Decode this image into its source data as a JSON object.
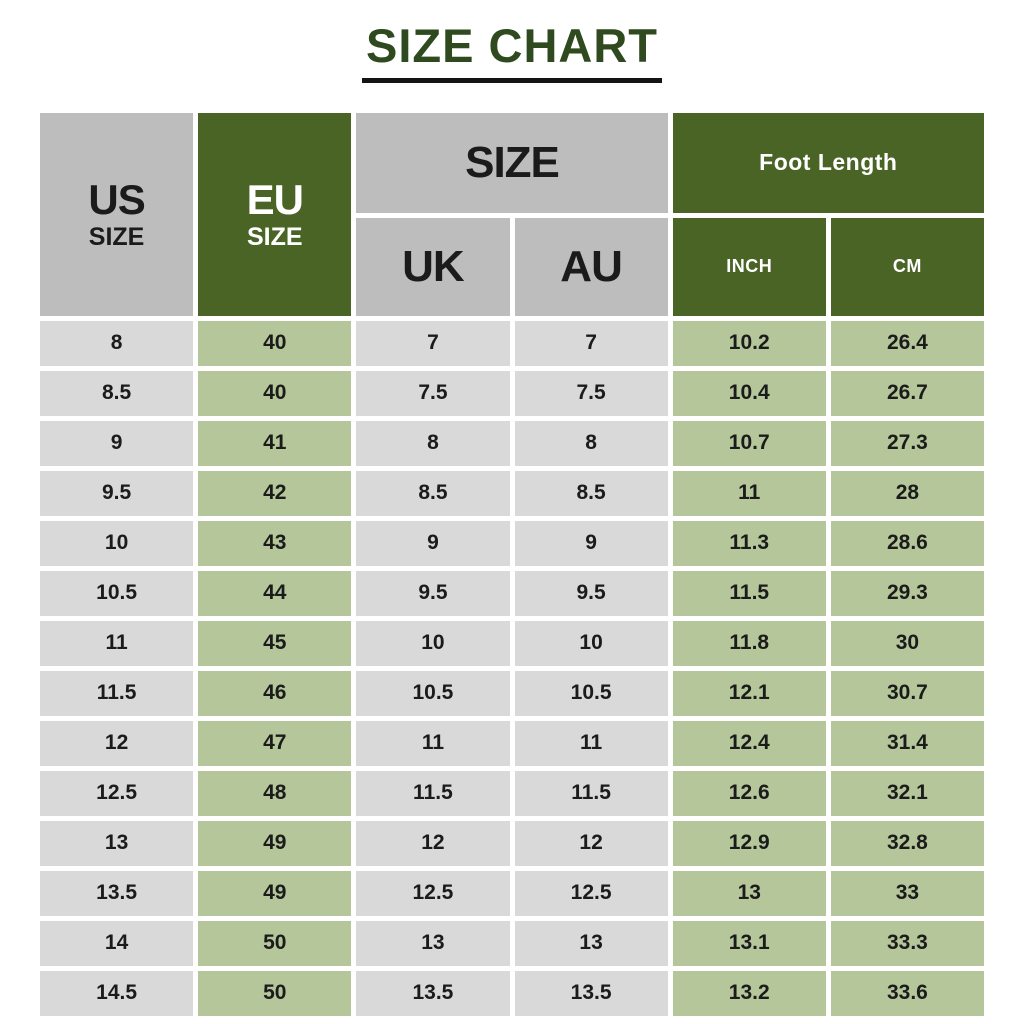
{
  "title": "SIZE CHART",
  "header": {
    "us_main": "US",
    "us_sub": "SIZE",
    "eu_main": "EU",
    "eu_sub": "SIZE",
    "size_group": "SIZE",
    "uk": "UK",
    "au": "AU",
    "foot_length_group": "Foot Length",
    "inch": "INCH",
    "cm": "CM"
  },
  "colors": {
    "title_green": "#2e4a1e",
    "header_gray": "#bdbdbd",
    "header_green": "#4a6426",
    "cell_gray": "#d9d9d9",
    "cell_green": "#b5c79a",
    "text_black": "#1b1b1b",
    "text_white": "#ffffff",
    "underline_black": "#141414",
    "page_background": "#ffffff"
  },
  "chart_data": {
    "type": "table",
    "title": "SIZE CHART",
    "column_groups": [
      {
        "label": "US SIZE",
        "columns": [
          "US SIZE"
        ]
      },
      {
        "label": "EU SIZE",
        "columns": [
          "EU SIZE"
        ]
      },
      {
        "label": "SIZE",
        "columns": [
          "UK",
          "AU"
        ]
      },
      {
        "label": "Foot Length",
        "columns": [
          "INCH",
          "CM"
        ]
      }
    ],
    "columns": [
      "US SIZE",
      "EU SIZE",
      "UK",
      "AU",
      "INCH",
      "CM"
    ],
    "rows": [
      [
        "8",
        "40",
        "7",
        "7",
        "10.2",
        "26.4"
      ],
      [
        "8.5",
        "40",
        "7.5",
        "7.5",
        "10.4",
        "26.7"
      ],
      [
        "9",
        "41",
        "8",
        "8",
        "10.7",
        "27.3"
      ],
      [
        "9.5",
        "42",
        "8.5",
        "8.5",
        "11",
        "28"
      ],
      [
        "10",
        "43",
        "9",
        "9",
        "11.3",
        "28.6"
      ],
      [
        "10.5",
        "44",
        "9.5",
        "9.5",
        "11.5",
        "29.3"
      ],
      [
        "11",
        "45",
        "10",
        "10",
        "11.8",
        "30"
      ],
      [
        "11.5",
        "46",
        "10.5",
        "10.5",
        "12.1",
        "30.7"
      ],
      [
        "12",
        "47",
        "11",
        "11",
        "12.4",
        "31.4"
      ],
      [
        "12.5",
        "48",
        "11.5",
        "11.5",
        "12.6",
        "32.1"
      ],
      [
        "13",
        "49",
        "12",
        "12",
        "12.9",
        "32.8"
      ],
      [
        "13.5",
        "49",
        "12.5",
        "12.5",
        "13",
        "33"
      ],
      [
        "14",
        "50",
        "13",
        "13",
        "13.1",
        "33.3"
      ],
      [
        "14.5",
        "50",
        "13.5",
        "13.5",
        "13.2",
        "33.6"
      ]
    ]
  }
}
